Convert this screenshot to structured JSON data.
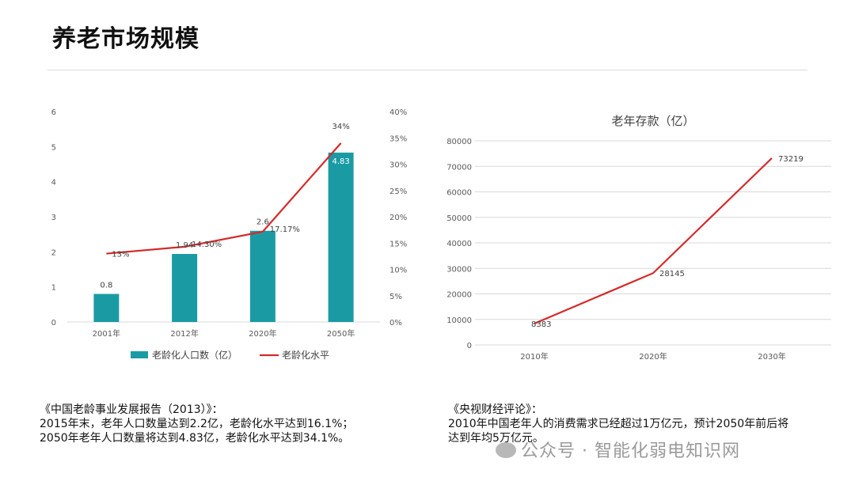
{
  "page": {
    "title": "养老市场规模",
    "watermark": "公众号 · 智能化弱电知识网"
  },
  "notes": {
    "left": [
      "《中国老龄事业发展报告（2013）》：",
      "2015年末，老年人口数量达到2.2亿，老龄化水平达到16.1%；",
      "2050年老年人口数量将达到4.83亿，老龄化水平达到34.1%。"
    ],
    "right": [
      "《央视财经评论》：",
      "2010年中国老年人的消费需求已经超过1万亿元，预计2050年前后将",
      "达到年均5万亿元。"
    ]
  },
  "colors": {
    "bar": "#1a9ba4",
    "line": "#d42a2a",
    "grid": "#d9d9d9"
  },
  "chart_data": [
    {
      "type": "bar",
      "categories": [
        "2001年",
        "2012年",
        "2020年",
        "2050年"
      ],
      "series": [
        {
          "name": "老龄化人口数（亿）",
          "type": "bar",
          "axis": "left",
          "values": [
            0.8,
            1.94,
            2.6,
            4.83
          ],
          "labels": [
            "0.8",
            "1.94",
            "2.6",
            "4.83"
          ]
        },
        {
          "name": "老龄化水平",
          "type": "line",
          "axis": "right",
          "values": [
            13,
            14.3,
            17.17,
            34
          ],
          "labels": [
            "13%",
            "14.30%",
            "17.17%",
            "34%"
          ]
        }
      ],
      "y_left": {
        "min": 0,
        "max": 6,
        "ticks": [
          "0",
          "1",
          "2",
          "3",
          "4",
          "5",
          "6"
        ]
      },
      "y_right": {
        "min": 0,
        "max": 40,
        "ticks": [
          "0%",
          "5%",
          "10%",
          "15%",
          "20%",
          "25%",
          "30%",
          "35%",
          "40%"
        ]
      },
      "legend": "bottom",
      "grid": false
    },
    {
      "type": "line",
      "title": "老年存款（亿）",
      "categories": [
        "2010年",
        "2020年",
        "2030年"
      ],
      "series": [
        {
          "values": [
            8383,
            28145,
            73219
          ],
          "labels": [
            "8383",
            "28145",
            "73219"
          ]
        }
      ],
      "ylim": [
        0,
        80000
      ],
      "yticks": [
        "0",
        "10000",
        "20000",
        "30000",
        "40000",
        "50000",
        "60000",
        "70000",
        "80000"
      ],
      "grid": true
    }
  ]
}
